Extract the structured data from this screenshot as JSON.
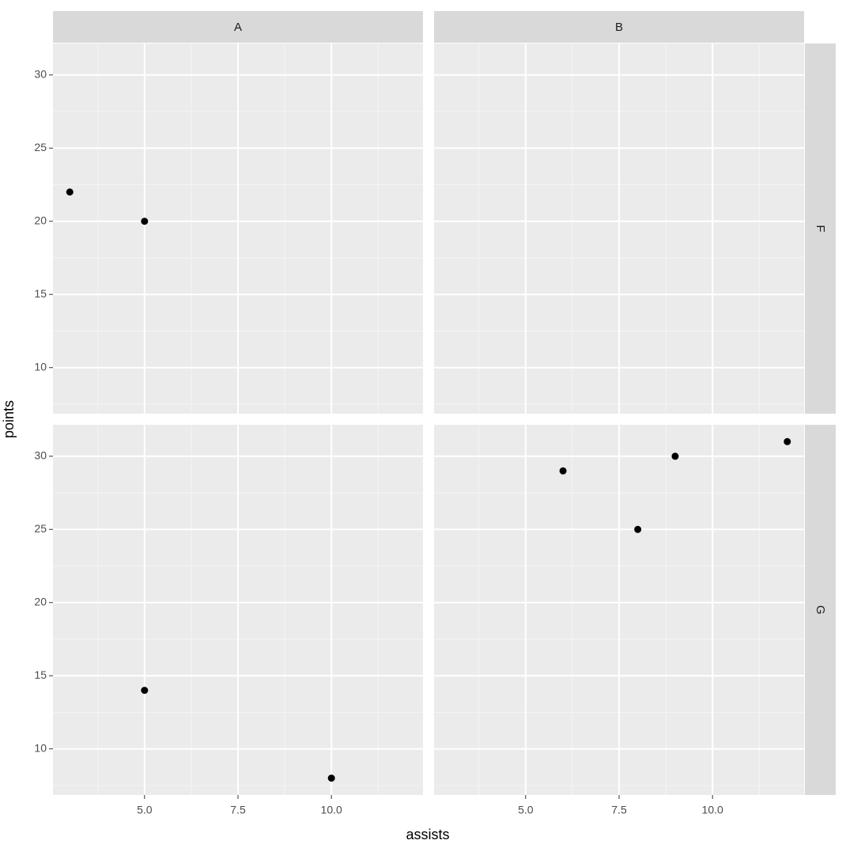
{
  "chart_data": {
    "type": "scatter",
    "x_label": "assists",
    "y_label": "points",
    "columns": [
      "A",
      "B"
    ],
    "rows": [
      "F",
      "G"
    ],
    "xlim": [
      2.55,
      12.45
    ],
    "ylim": [
      6.85,
      32.15
    ],
    "xticks": [
      {
        "value": 5,
        "label": "5.0"
      },
      {
        "value": 7.5,
        "label": "7.5"
      },
      {
        "value": 10,
        "label": "10.0"
      }
    ],
    "yticks": [
      10,
      15,
      20,
      25,
      30
    ],
    "minor_xgrid": [
      3.75,
      6.25,
      8.75,
      11.25
    ],
    "minor_ygrid": [
      7.5,
      12.5,
      17.5,
      22.5,
      27.5
    ],
    "grid": true,
    "color": "#000000",
    "panels": [
      {
        "x": [
          3,
          5
        ],
        "values": [
          22,
          20
        ]
      },
      {
        "x": [],
        "values": []
      },
      {
        "x": [
          5,
          10
        ],
        "values": [
          14,
          8
        ]
      },
      {
        "x": [
          6,
          8,
          9,
          12
        ],
        "values": [
          29,
          25,
          30,
          31
        ]
      }
    ]
  }
}
